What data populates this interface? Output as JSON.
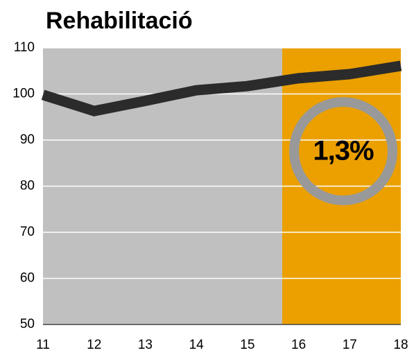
{
  "chart_data": {
    "type": "line",
    "title": "Rehabilitació",
    "x": [
      11,
      12,
      13,
      14,
      15,
      16,
      17,
      18
    ],
    "series": [
      {
        "color": "#2b2b2b",
        "values": [
          99.8,
          96.3,
          98.5,
          100.8,
          101.7,
          103.4,
          104.3,
          106.1
        ]
      }
    ],
    "xlim": [
      11,
      18
    ],
    "xticks": [
      11,
      12,
      13,
      14,
      15,
      16,
      17,
      18
    ],
    "ylim": [
      50,
      110
    ],
    "yticks": [
      50,
      60,
      70,
      80,
      90,
      100,
      110
    ],
    "grid": true,
    "background_color": "#c0c0c0",
    "shade_from": 15.68,
    "shade_color": "#eba000",
    "annotation": "1,3%"
  }
}
